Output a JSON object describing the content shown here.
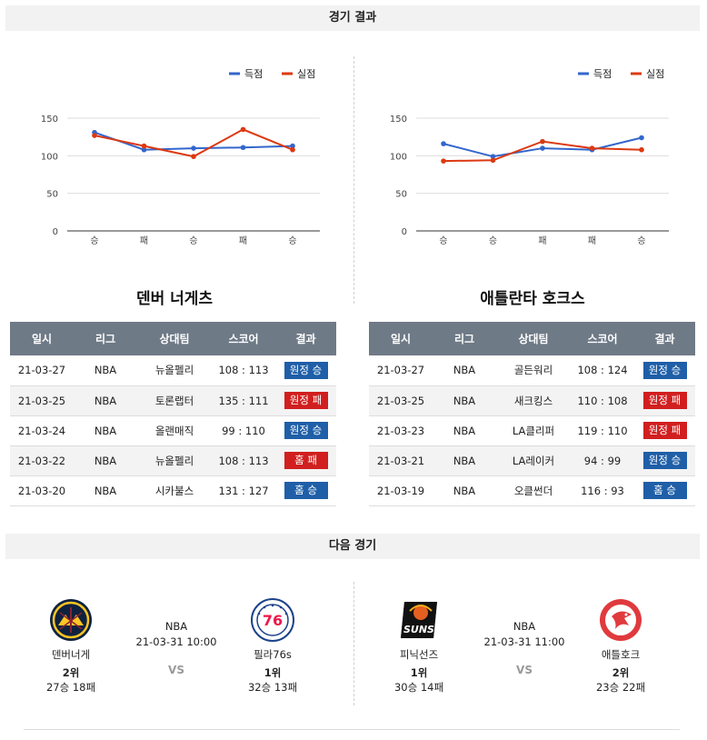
{
  "results_header": "경기 결과",
  "next_header": "다음 경기",
  "legend": {
    "score": "득점",
    "allowed": "실점"
  },
  "colors": {
    "score": "#3366cc",
    "allowed": "#dc3912",
    "win": "#1f5fa8",
    "loss": "#d11f1f"
  },
  "chart_data": [
    {
      "type": "line",
      "categories": [
        "승",
        "패",
        "승",
        "패",
        "승"
      ],
      "ylim": [
        0,
        150
      ],
      "yticks": [
        0,
        50,
        100,
        150
      ],
      "series": [
        {
          "name": "득점",
          "values": [
            131,
            108,
            110,
            111,
            113
          ]
        },
        {
          "name": "실점",
          "values": [
            127,
            113,
            99,
            135,
            108
          ]
        }
      ]
    },
    {
      "type": "line",
      "categories": [
        "승",
        "승",
        "패",
        "패",
        "승"
      ],
      "ylim": [
        0,
        150
      ],
      "yticks": [
        0,
        50,
        100,
        150
      ],
      "series": [
        {
          "name": "득점",
          "values": [
            116,
            99,
            110,
            108,
            124
          ]
        },
        {
          "name": "실점",
          "values": [
            93,
            94,
            119,
            110,
            108
          ]
        }
      ]
    }
  ],
  "table_headers": [
    "일시",
    "리그",
    "상대팀",
    "스코어",
    "결과"
  ],
  "teams": [
    {
      "name": "덴버 너게츠",
      "games": [
        {
          "date": "21-03-27",
          "league": "NBA",
          "opponent": "뉴올펠리",
          "score": "108 : 113",
          "result": "원정 승",
          "type": "win"
        },
        {
          "date": "21-03-25",
          "league": "NBA",
          "opponent": "토론랩터",
          "score": "135 : 111",
          "result": "원정 패",
          "type": "loss"
        },
        {
          "date": "21-03-24",
          "league": "NBA",
          "opponent": "올랜매직",
          "score": "99 : 110",
          "result": "원정 승",
          "type": "win"
        },
        {
          "date": "21-03-22",
          "league": "NBA",
          "opponent": "뉴올펠리",
          "score": "108 : 113",
          "result": "홈 패",
          "type": "loss"
        },
        {
          "date": "21-03-20",
          "league": "NBA",
          "opponent": "시카불스",
          "score": "131 : 127",
          "result": "홈 승",
          "type": "win"
        }
      ]
    },
    {
      "name": "애틀란타 호크스",
      "games": [
        {
          "date": "21-03-27",
          "league": "NBA",
          "opponent": "골든워리",
          "score": "108 : 124",
          "result": "원정 승",
          "type": "win"
        },
        {
          "date": "21-03-25",
          "league": "NBA",
          "opponent": "새크킹스",
          "score": "110 : 108",
          "result": "원정 패",
          "type": "loss"
        },
        {
          "date": "21-03-23",
          "league": "NBA",
          "opponent": "LA클리퍼",
          "score": "119 : 110",
          "result": "원정 패",
          "type": "loss"
        },
        {
          "date": "21-03-21",
          "league": "NBA",
          "opponent": "LA레이커",
          "score": "94 : 99",
          "result": "원정 승",
          "type": "win"
        },
        {
          "date": "21-03-19",
          "league": "NBA",
          "opponent": "오클썬더",
          "score": "116 : 93",
          "result": "홈 승",
          "type": "win"
        }
      ]
    }
  ],
  "matches": [
    {
      "league": "NBA",
      "datetime": "21-03-31 10:00",
      "vs": "VS",
      "home": {
        "name": "덴버너게",
        "rank": "2위",
        "record": "27승 18패",
        "logo": "nuggets-logo"
      },
      "away": {
        "name": "필라76s",
        "rank": "1위",
        "record": "32승 13패",
        "logo": "76ers-logo"
      }
    },
    {
      "league": "NBA",
      "datetime": "21-03-31 11:00",
      "vs": "VS",
      "home": {
        "name": "피닉선즈",
        "rank": "1위",
        "record": "30승 14패",
        "logo": "suns-logo"
      },
      "away": {
        "name": "애틀호크",
        "rank": "2위",
        "record": "23승 22패",
        "logo": "hawks-logo"
      }
    }
  ]
}
